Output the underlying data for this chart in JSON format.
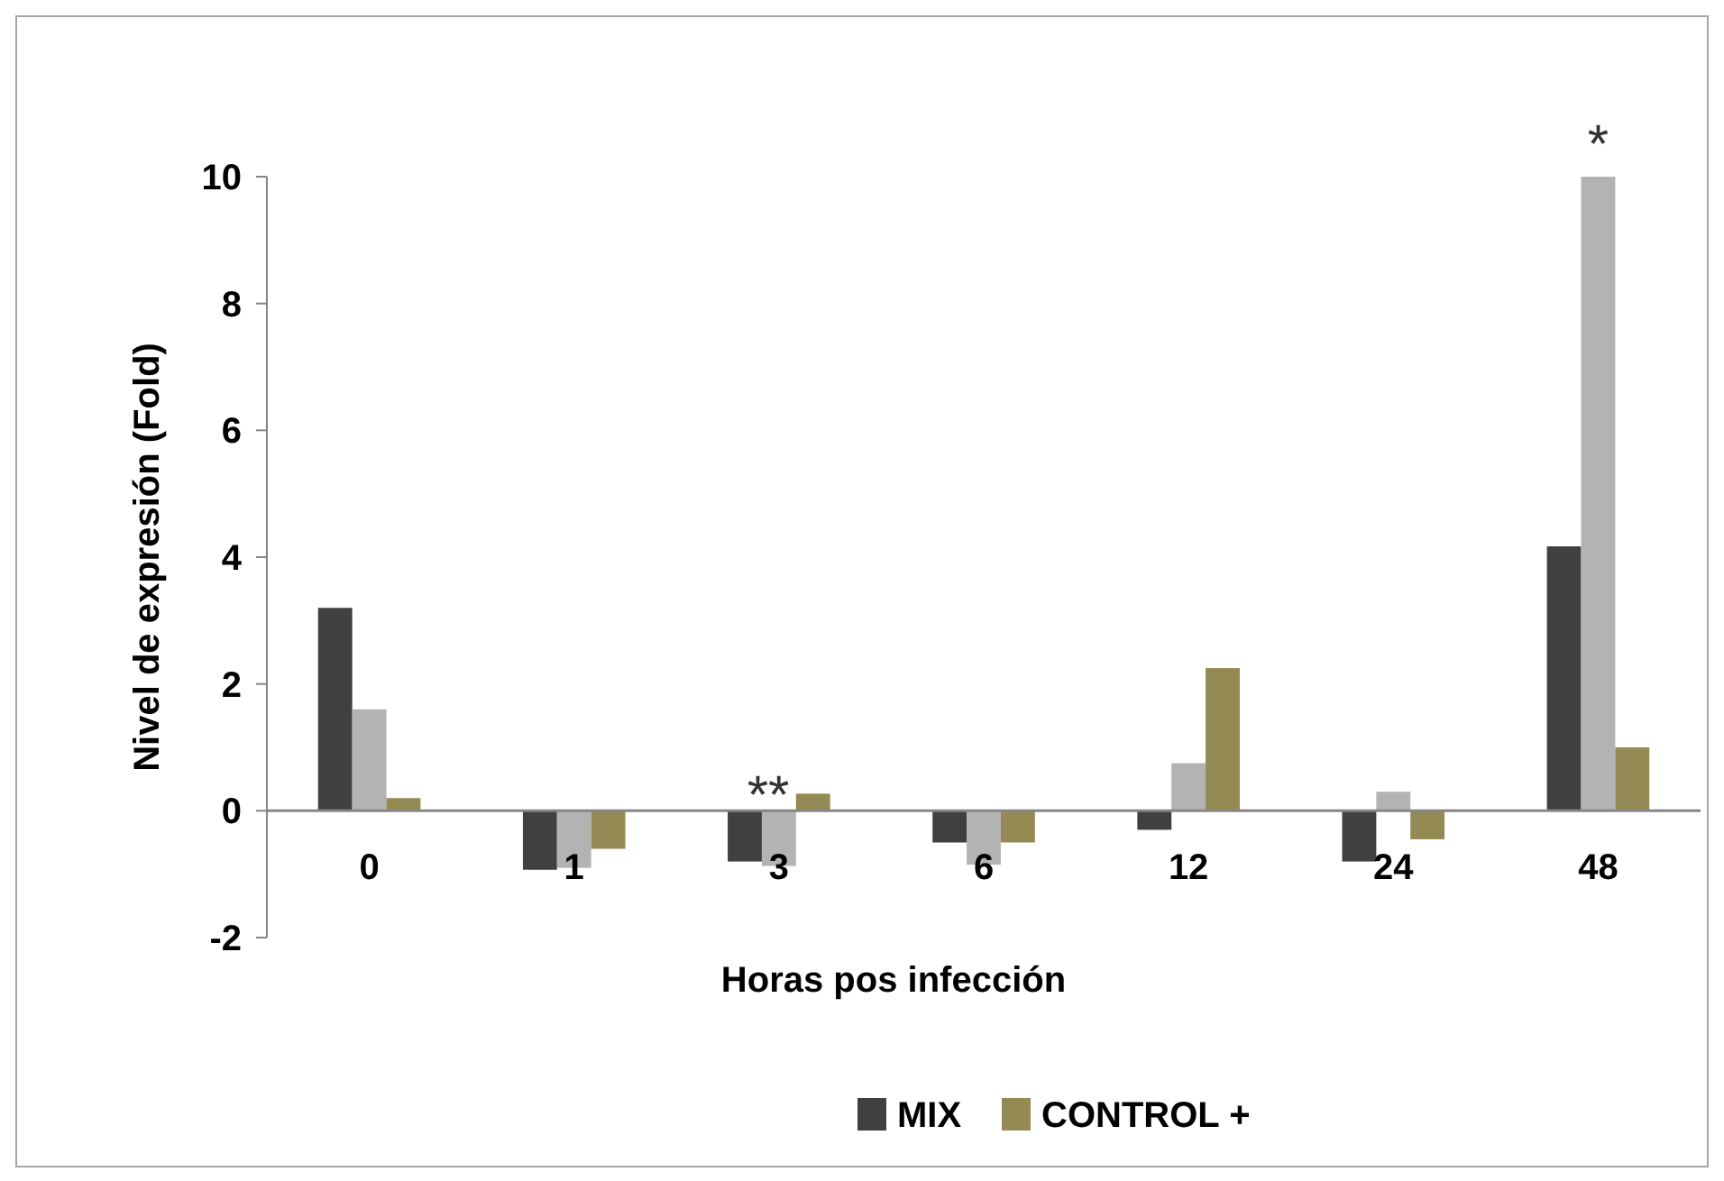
{
  "chart_data": {
    "type": "bar",
    "xlabel": "Horas pos infección",
    "ylabel": "Nivel de expresión (Fold)",
    "categories": [
      "0",
      "1",
      "3",
      "6",
      "12",
      "24",
      "48"
    ],
    "series": [
      {
        "name": "MIX",
        "color": "#404040",
        "values": [
          3.2,
          -0.93,
          -0.8,
          -0.5,
          -0.3,
          -0.8,
          4.17
        ]
      },
      {
        "color": "#b3b3b3",
        "values": [
          1.6,
          -0.9,
          -0.87,
          -0.85,
          0.75,
          0.3,
          10
        ]
      },
      {
        "name": "CONTROL +",
        "color": "#948a54",
        "values": [
          0.2,
          -0.6,
          0.27,
          -0.5,
          2.25,
          -0.45,
          1
        ]
      }
    ],
    "ylim": [
      -2,
      10
    ],
    "yticks": [
      -2,
      0,
      2,
      4,
      6,
      8,
      10
    ],
    "grid": false,
    "legend": "bottom",
    "annotations": [
      "**",
      {
        "text": "*",
        "x": "48",
        "y": 10
      }
    ]
  }
}
